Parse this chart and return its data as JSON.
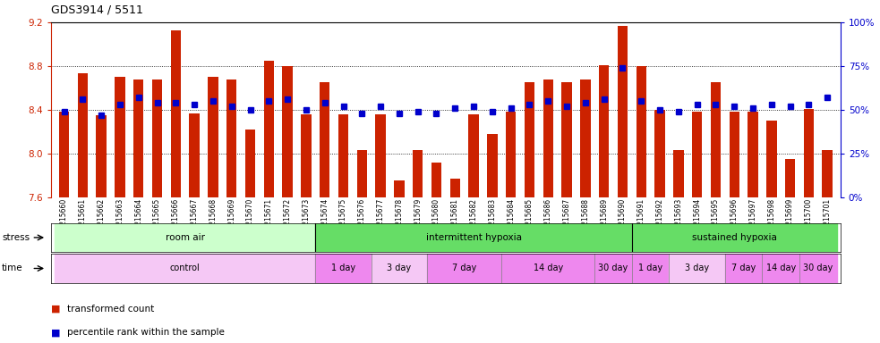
{
  "title": "GDS3914 / 5511",
  "ylim": [
    7.6,
    9.2
  ],
  "ylim_right": [
    0,
    100
  ],
  "yticks_left": [
    7.6,
    8.0,
    8.4,
    8.8,
    9.2
  ],
  "yticks_right": [
    0,
    25,
    50,
    75,
    100
  ],
  "samples": [
    "GSM215660",
    "GSM215661",
    "GSM215662",
    "GSM215663",
    "GSM215664",
    "GSM215665",
    "GSM215666",
    "GSM215667",
    "GSM215668",
    "GSM215669",
    "GSM215670",
    "GSM215671",
    "GSM215672",
    "GSM215673",
    "GSM215674",
    "GSM215675",
    "GSM215676",
    "GSM215677",
    "GSM215678",
    "GSM215679",
    "GSM215680",
    "GSM215681",
    "GSM215682",
    "GSM215683",
    "GSM215684",
    "GSM215685",
    "GSM215686",
    "GSM215687",
    "GSM215688",
    "GSM215689",
    "GSM215690",
    "GSM215691",
    "GSM215692",
    "GSM215693",
    "GSM215694",
    "GSM215695",
    "GSM215696",
    "GSM215697",
    "GSM215698",
    "GSM215699",
    "GSM215700",
    "GSM215701"
  ],
  "bar_values": [
    8.38,
    8.73,
    8.35,
    8.7,
    8.68,
    8.68,
    9.13,
    8.37,
    8.7,
    8.68,
    8.22,
    8.85,
    8.8,
    8.36,
    8.65,
    8.36,
    8.03,
    8.36,
    7.75,
    8.03,
    7.92,
    7.77,
    8.36,
    8.18,
    8.38,
    8.65,
    8.68,
    8.65,
    8.68,
    8.81,
    9.17,
    8.8,
    8.4,
    8.03,
    8.38,
    8.65,
    8.38,
    8.38,
    8.3,
    7.95,
    8.41,
    8.03
  ],
  "percentile_values": [
    49,
    56,
    47,
    53,
    57,
    54,
    54,
    53,
    55,
    52,
    50,
    55,
    56,
    50,
    54,
    52,
    48,
    52,
    48,
    49,
    48,
    51,
    52,
    49,
    51,
    53,
    55,
    52,
    54,
    56,
    74,
    55,
    50,
    49,
    53,
    53,
    52,
    51,
    53,
    52,
    53,
    57
  ],
  "bar_color": "#cc2200",
  "dot_color": "#0000cc",
  "bar_bottom": 7.6,
  "hgrid_values": [
    8.0,
    8.4,
    8.8
  ],
  "left_label_color": "#cc2200",
  "right_label_color": "#0000cc",
  "background_color": "#ffffff",
  "stress_defs": [
    {
      "label": "room air",
      "start": 0,
      "end": 13,
      "color": "#ccffcc"
    },
    {
      "label": "intermittent hypoxia",
      "start": 14,
      "end": 30,
      "color": "#66dd66"
    },
    {
      "label": "sustained hypoxia",
      "start": 31,
      "end": 41,
      "color": "#66dd66"
    }
  ],
  "time_defs": [
    {
      "label": "control",
      "start": 0,
      "end": 13,
      "color": "#f5c8f5"
    },
    {
      "label": "1 day",
      "start": 14,
      "end": 16,
      "color": "#ee88ee"
    },
    {
      "label": "3 day",
      "start": 17,
      "end": 19,
      "color": "#f5c8f5"
    },
    {
      "label": "7 day",
      "start": 20,
      "end": 23,
      "color": "#ee88ee"
    },
    {
      "label": "14 day",
      "start": 24,
      "end": 28,
      "color": "#ee88ee"
    },
    {
      "label": "30 day",
      "start": 29,
      "end": 30,
      "color": "#ee88ee"
    },
    {
      "label": "1 day",
      "start": 31,
      "end": 32,
      "color": "#ee88ee"
    },
    {
      "label": "3 day",
      "start": 33,
      "end": 35,
      "color": "#f5c8f5"
    },
    {
      "label": "7 day",
      "start": 36,
      "end": 37,
      "color": "#ee88ee"
    },
    {
      "label": "14 day",
      "start": 38,
      "end": 39,
      "color": "#ee88ee"
    },
    {
      "label": "30 day",
      "start": 40,
      "end": 41,
      "color": "#ee88ee"
    }
  ]
}
